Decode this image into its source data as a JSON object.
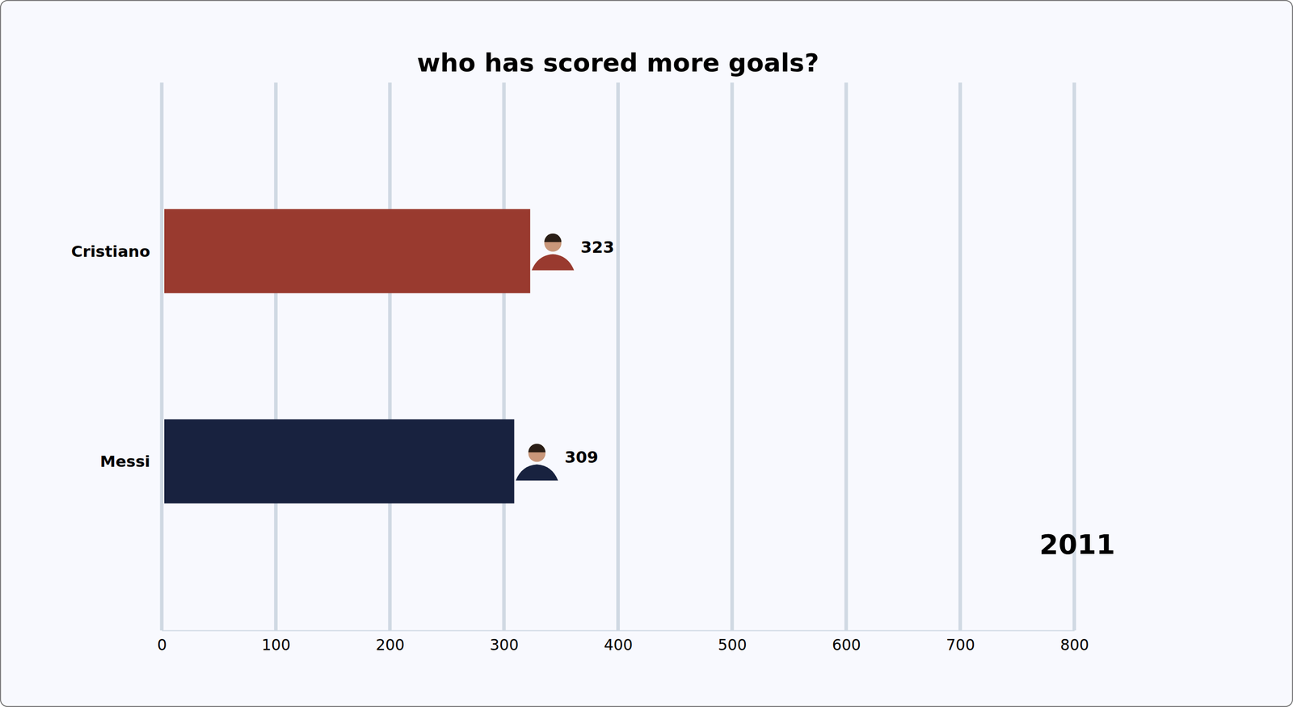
{
  "chart_data": {
    "type": "bar",
    "title": "who has scored more goals?",
    "orientation": "horizontal",
    "categories": [
      "Cristiano",
      "Messi"
    ],
    "values": [
      323,
      309
    ],
    "colors": [
      "#993a2f",
      "#18223f"
    ],
    "xlim": [
      0,
      800
    ],
    "xticks": [
      0,
      100,
      200,
      300,
      400,
      500,
      600,
      700,
      800
    ],
    "grid": true,
    "data_labels": true,
    "annotation": "2011"
  }
}
